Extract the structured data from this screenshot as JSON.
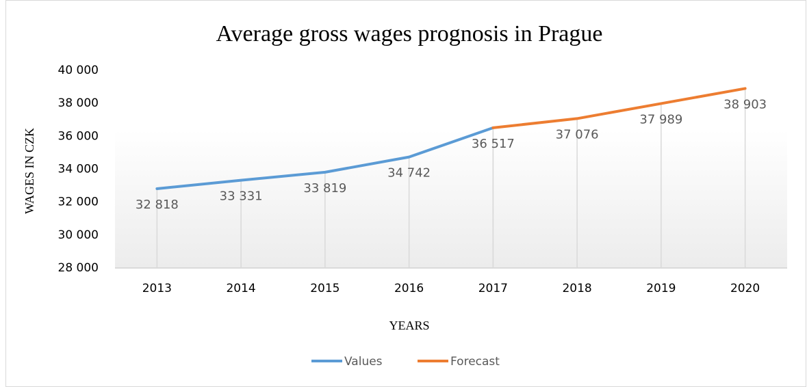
{
  "chart_data": {
    "type": "line",
    "title": "Average gross wages prognosis in Prague",
    "x_label": "YEARS",
    "y_label": "WAGES IN CZK",
    "categories": [
      "2013",
      "2014",
      "2015",
      "2016",
      "2017",
      "2018",
      "2019",
      "2020"
    ],
    "series": [
      {
        "name": "Values",
        "color": "#5b9bd5",
        "values": [
          32818,
          33331,
          33819,
          34742,
          36517,
          null,
          null,
          null
        ],
        "value_labels": [
          "32 818",
          "33 331",
          "33 819",
          "34 742",
          "36 517",
          null,
          null,
          null
        ]
      },
      {
        "name": "Forecast",
        "color": "#ed7d31",
        "values": [
          null,
          null,
          null,
          null,
          36517,
          37076,
          37989,
          38903
        ],
        "value_labels": [
          null,
          null,
          null,
          null,
          null,
          "37 076",
          "37 989",
          "38 903"
        ]
      }
    ],
    "ylim": [
      28000,
      40000
    ],
    "yticks": [
      {
        "value": 28000,
        "label": "28 000"
      },
      {
        "value": 30000,
        "label": "30 000"
      },
      {
        "value": 32000,
        "label": "32 000"
      },
      {
        "value": 34000,
        "label": "34 000"
      },
      {
        "value": 36000,
        "label": "36 000"
      },
      {
        "value": 38000,
        "label": "38 000"
      },
      {
        "value": 40000,
        "label": "40 000"
      }
    ],
    "legend": "bottom"
  }
}
